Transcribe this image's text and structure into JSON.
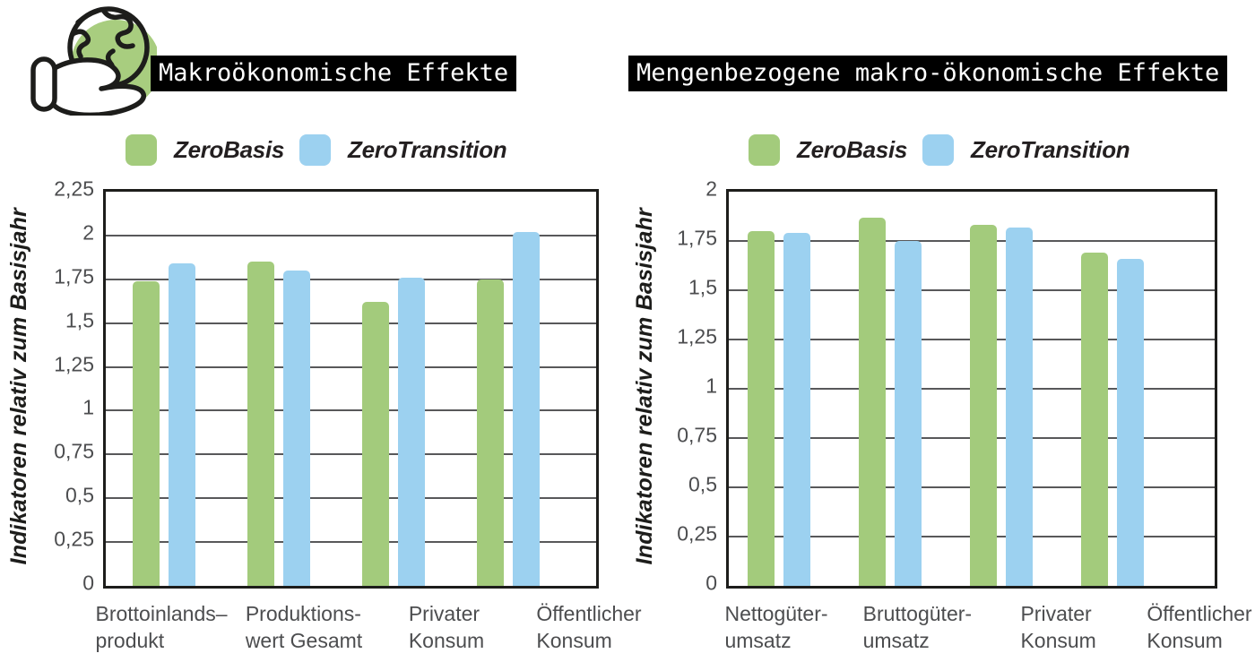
{
  "logo": {
    "icon": "hand-holding-globe-icon",
    "circle_color": "#a8cd7f",
    "outline_color": "#1d1d1b"
  },
  "colors": {
    "green": "#a3cb7c",
    "blue": "#9cd1f0",
    "grid": "#58585a",
    "plot_border": "#1d1d1b",
    "label_text": "#4c4d4f",
    "title_bg": "#000000",
    "title_fg": "#ffffff"
  },
  "chart_data": [
    {
      "type": "bar",
      "title": "Makroökonomische Effekte",
      "ylabel": "Indikatoren relativ zum Basisjahr",
      "ylim": [
        0,
        2.25
      ],
      "ytick_step": 0.25,
      "ytick_labels": [
        "0",
        "0,25",
        "0,5",
        "0,75",
        "1",
        "1,25",
        "1,5",
        "1,75",
        "2",
        "2,25"
      ],
      "grid": true,
      "legend_position": "top",
      "categories": [
        [
          "Brottoinlands–",
          "produkt"
        ],
        [
          "Produktions-",
          "wert Gesamt"
        ],
        [
          "Privater",
          "Konsum"
        ],
        [
          "Öffentlicher",
          "Konsum"
        ]
      ],
      "series": [
        {
          "name": "ZeroBasis",
          "color": "#a3cb7c",
          "values": [
            1.74,
            1.85,
            1.62,
            1.75
          ]
        },
        {
          "name": "ZeroTransition",
          "color": "#9cd1f0",
          "values": [
            1.84,
            1.8,
            1.76,
            2.02
          ]
        }
      ]
    },
    {
      "type": "bar",
      "title": "Mengenbezogene makro-ökonomische Effekte",
      "ylabel": "Indikatoren relativ zum Basisjahr",
      "ylim": [
        0,
        2
      ],
      "ytick_step": 0.25,
      "ytick_labels": [
        "0",
        "0,25",
        "0,5",
        "0,75",
        "1",
        "1,25",
        "1,5",
        "1,75",
        "2"
      ],
      "grid": true,
      "legend_position": "top",
      "categories": [
        [
          "Nettogüter-",
          "umsatz"
        ],
        [
          "Bruttogüter-",
          "umsatz"
        ],
        [
          "Privater",
          "Konsum"
        ],
        [
          "Öffentlicher",
          "Konsum"
        ]
      ],
      "series": [
        {
          "name": "ZeroBasis",
          "color": "#a3cb7c",
          "values": [
            1.8,
            1.87,
            1.83,
            1.69
          ]
        },
        {
          "name": "ZeroTransition",
          "color": "#9cd1f0",
          "values": [
            1.79,
            1.75,
            1.82,
            1.66
          ]
        }
      ]
    }
  ]
}
